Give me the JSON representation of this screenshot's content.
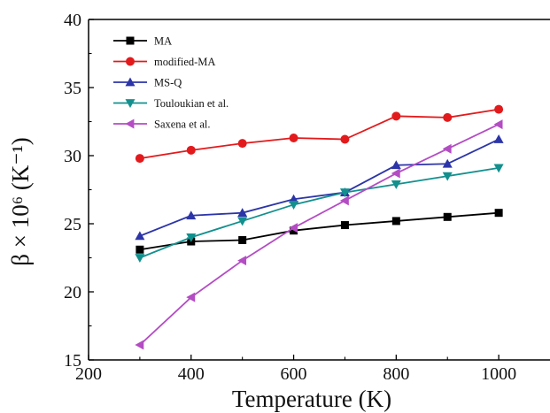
{
  "chart_data": {
    "type": "line",
    "xlabel": "Temperature (K)",
    "ylabel": "β × 10⁶ (K⁻¹)",
    "xlim": [
      200,
      1100
    ],
    "ylim": [
      15,
      40
    ],
    "xticks": [
      200,
      400,
      600,
      800,
      1000
    ],
    "yticks": [
      15,
      20,
      25,
      30,
      35,
      40
    ],
    "x": [
      300,
      400,
      500,
      600,
      700,
      800,
      900,
      1000
    ],
    "grid": false,
    "legend_position": "top-left",
    "series": [
      {
        "name": "MA",
        "color": "#000000",
        "marker": "square",
        "values": [
          23.1,
          23.7,
          23.8,
          24.5,
          24.9,
          25.2,
          25.5,
          25.8
        ]
      },
      {
        "name": "modified-MA",
        "color": "#e31a1c",
        "marker": "circle",
        "values": [
          29.8,
          30.4,
          30.9,
          31.3,
          31.2,
          32.9,
          32.8,
          33.4
        ]
      },
      {
        "name": "MS-Q",
        "color": "#2c35a8",
        "marker": "triangle-up",
        "values": [
          24.1,
          25.6,
          25.8,
          26.8,
          27.3,
          29.3,
          29.4,
          31.2
        ]
      },
      {
        "name": "Touloukian et al.",
        "color": "#12908e",
        "marker": "triangle-down",
        "values": [
          22.5,
          24.0,
          25.2,
          26.4,
          27.3,
          27.9,
          28.5,
          29.1
        ]
      },
      {
        "name": "Saxena et al.",
        "color": "#b44cc4",
        "marker": "triangle-left",
        "values": [
          16.1,
          19.6,
          22.3,
          24.7,
          26.7,
          28.7,
          30.5,
          32.3
        ]
      }
    ]
  }
}
